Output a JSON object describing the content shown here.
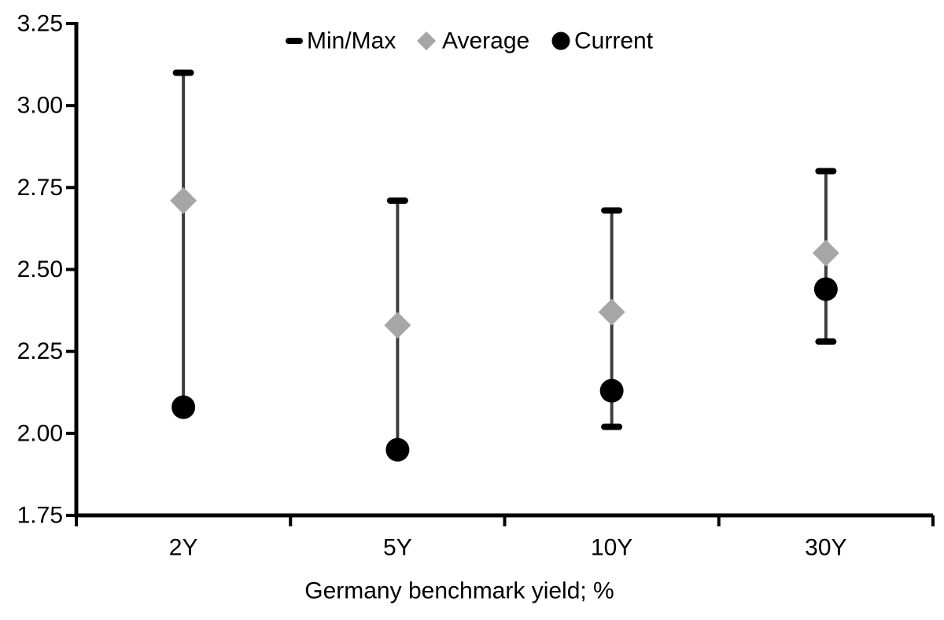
{
  "chart_data": {
    "type": "scatter",
    "title": "",
    "categories": [
      "2Y",
      "5Y",
      "10Y",
      "30Y"
    ],
    "series": [
      {
        "name": "Min/Max",
        "role": "range",
        "min": [
          2.08,
          1.95,
          2.02,
          2.28
        ],
        "max": [
          3.1,
          2.71,
          2.68,
          2.8
        ]
      },
      {
        "name": "Average",
        "role": "point",
        "marker": "diamond",
        "values": [
          2.71,
          2.33,
          2.37,
          2.55
        ]
      },
      {
        "name": "Current",
        "role": "point",
        "marker": "circle",
        "values": [
          2.08,
          1.95,
          2.13,
          2.44
        ]
      }
    ],
    "legend": [
      "Min/Max",
      "Average",
      "Current"
    ],
    "legend_position": "top-center",
    "xlabel": "Germany benchmark yield; %",
    "ylabel": "",
    "ylim": [
      1.75,
      3.25
    ],
    "ytick_step": 0.25,
    "ytick_labels": [
      "3.25",
      "3.00",
      "2.75",
      "2.50",
      "2.25",
      "2.00",
      "1.75"
    ],
    "ytick_values": [
      3.25,
      3.0,
      2.75,
      2.5,
      2.25,
      2.0,
      1.75
    ],
    "grid": false,
    "colors": {
      "axis": "#000000",
      "text": "#000000",
      "whisker_line": "#3d3d3d",
      "minmax_cap": "#000000",
      "average_marker": "#a6a6a6",
      "current_marker": "#000000",
      "background": "#ffffff"
    }
  }
}
